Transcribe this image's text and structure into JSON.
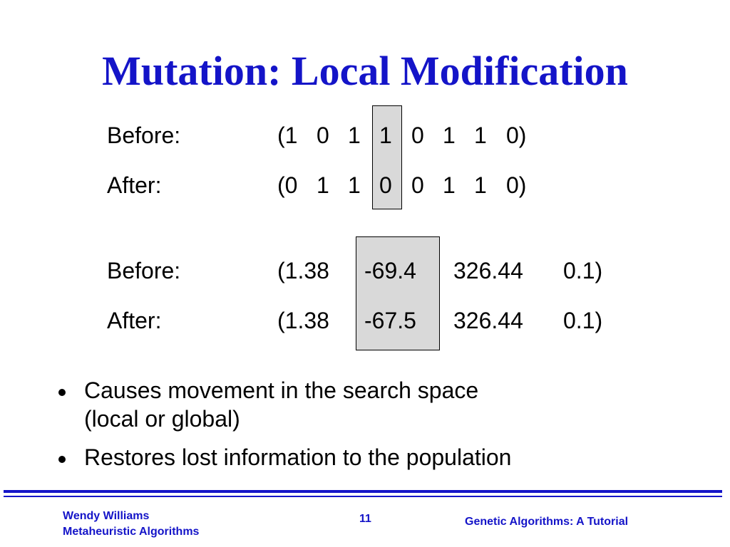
{
  "slide": {
    "title": "Mutation: Local Modification",
    "binary_example": {
      "before_label": "Before:",
      "after_label": "After:",
      "before_values": [
        "(1",
        "0",
        "1",
        "1",
        "0",
        "1",
        "1",
        "0)"
      ],
      "after_values": [
        "(0",
        "1",
        "1",
        "0",
        "0",
        "1",
        "1",
        "0)"
      ]
    },
    "real_example": {
      "before_label": "Before:",
      "after_label": "After:",
      "before_values": [
        "(1.38",
        "-69.4",
        "326.44",
        "0.1)"
      ],
      "after_values": [
        "(1.38",
        "-67.5",
        "326.44",
        "0.1)"
      ]
    },
    "bullets": [
      {
        "line1": "Causes movement in the search space",
        "line2": "(local or global)"
      },
      {
        "line1": "Restores lost information to the population",
        "line2": ""
      }
    ]
  },
  "footer": {
    "author": "Wendy Williams",
    "subtitle": "Metaheuristic Algorithms",
    "page_number": "11",
    "deck_title": "Genetic Algorithms: A Tutorial"
  },
  "colors": {
    "accent": "#1414c8",
    "highlight_box": "#d9d9d9"
  }
}
